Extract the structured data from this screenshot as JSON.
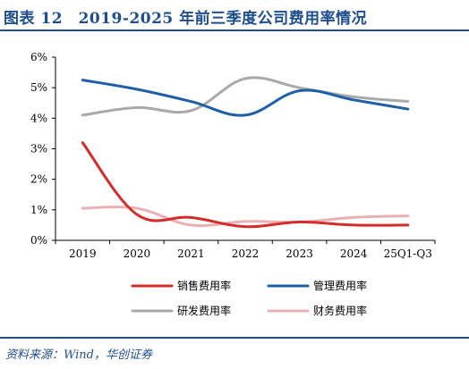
{
  "header": {
    "title": "图表 12　2019-2025 年前三季度公司费用率情况"
  },
  "footer": {
    "source": "资料来源：Wind，华创证券"
  },
  "colors": {
    "title_blue": "#1f4e8c",
    "sales": "#d42b2b",
    "management": "#1f5fa8",
    "rd": "#a9a9a9",
    "finance": "#eab1b5"
  },
  "chart_data": {
    "type": "line",
    "title": "",
    "xlabel": "",
    "ylabel": "",
    "categories": [
      "2019",
      "2020",
      "2021",
      "2022",
      "2023",
      "2024",
      "25Q1-Q3"
    ],
    "ylim": [
      0,
      6
    ],
    "yticks": [
      "0%",
      "1%",
      "2%",
      "3%",
      "4%",
      "5%",
      "6%"
    ],
    "grid": false,
    "legend_position": "bottom",
    "series": [
      {
        "name": "销售费用率",
        "color": "#d42b2b",
        "values": [
          3.2,
          0.85,
          0.75,
          0.45,
          0.6,
          0.5,
          0.5
        ]
      },
      {
        "name": "管理费用率",
        "color": "#1f5fa8",
        "values": [
          5.25,
          4.95,
          4.55,
          4.1,
          4.9,
          4.6,
          4.3
        ]
      },
      {
        "name": "研发费用率",
        "color": "#a9a9a9",
        "values": [
          4.1,
          4.35,
          4.25,
          5.3,
          5.0,
          4.7,
          4.55
        ]
      },
      {
        "name": "财务费用率",
        "color": "#eab1b5",
        "values": [
          1.05,
          1.05,
          0.5,
          0.62,
          0.6,
          0.75,
          0.8
        ]
      }
    ]
  }
}
